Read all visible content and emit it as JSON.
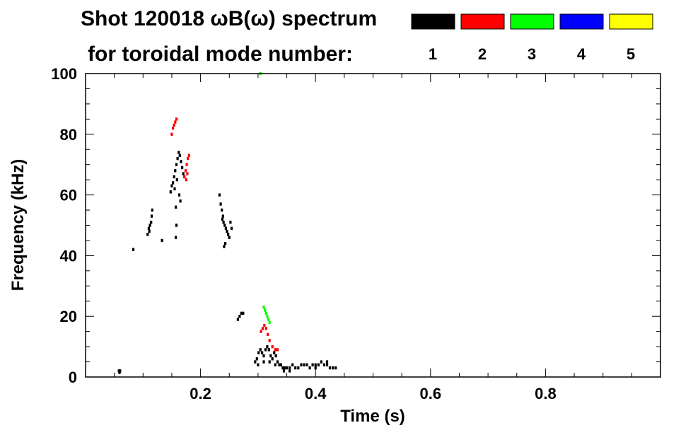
{
  "chart_data": {
    "type": "scatter",
    "title": "Shot 120018 ωB(ω) spectrum",
    "subtitle": "for toroidal mode number:",
    "xlabel": "Time (s)",
    "ylabel": "Frequency (kHz)",
    "xlim": [
      0.0,
      1.0
    ],
    "ylim": [
      0,
      100
    ],
    "x_ticks": [
      0.2,
      0.4,
      0.6,
      0.8
    ],
    "x_tick_labels": [
      "0.2",
      "0.4",
      "0.6",
      "0.8"
    ],
    "y_ticks": [
      0,
      20,
      40,
      60,
      80,
      100
    ],
    "y_tick_labels": [
      "0",
      "20",
      "40",
      "60",
      "80",
      "100"
    ],
    "grid": false,
    "legend_position": "top-right",
    "series": [
      {
        "name": "1",
        "color": "#000000",
        "points": [
          [
            0.058,
            2
          ],
          [
            0.06,
            2
          ],
          [
            0.059,
            1.5
          ],
          [
            0.083,
            42
          ],
          [
            0.108,
            47
          ],
          [
            0.11,
            49
          ],
          [
            0.112,
            50
          ],
          [
            0.114,
            51
          ],
          [
            0.115,
            53
          ],
          [
            0.116,
            55
          ],
          [
            0.111,
            48
          ],
          [
            0.133,
            45
          ],
          [
            0.148,
            61
          ],
          [
            0.15,
            63
          ],
          [
            0.152,
            64
          ],
          [
            0.154,
            66
          ],
          [
            0.156,
            68
          ],
          [
            0.158,
            70
          ],
          [
            0.16,
            72
          ],
          [
            0.162,
            74
          ],
          [
            0.164,
            73
          ],
          [
            0.166,
            71
          ],
          [
            0.168,
            69
          ],
          [
            0.17,
            67
          ],
          [
            0.155,
            62
          ],
          [
            0.159,
            65
          ],
          [
            0.163,
            60
          ],
          [
            0.157,
            56
          ],
          [
            0.158,
            50
          ],
          [
            0.157,
            46
          ],
          [
            0.165,
            58
          ],
          [
            0.172,
            66
          ],
          [
            0.233,
            60
          ],
          [
            0.235,
            57
          ],
          [
            0.237,
            55
          ],
          [
            0.239,
            53
          ],
          [
            0.24,
            51
          ],
          [
            0.242,
            50
          ],
          [
            0.244,
            49
          ],
          [
            0.246,
            48
          ],
          [
            0.248,
            47
          ],
          [
            0.25,
            46
          ],
          [
            0.243,
            44
          ],
          [
            0.241,
            43
          ],
          [
            0.238,
            52
          ],
          [
            0.252,
            51
          ],
          [
            0.254,
            49
          ],
          [
            0.265,
            19
          ],
          [
            0.268,
            20
          ],
          [
            0.271,
            21
          ],
          [
            0.274,
            21
          ],
          [
            0.295,
            5
          ],
          [
            0.298,
            6
          ],
          [
            0.301,
            8
          ],
          [
            0.304,
            9
          ],
          [
            0.307,
            8
          ],
          [
            0.31,
            7
          ],
          [
            0.313,
            9
          ],
          [
            0.316,
            10
          ],
          [
            0.319,
            9
          ],
          [
            0.322,
            7
          ],
          [
            0.325,
            6
          ],
          [
            0.328,
            8
          ],
          [
            0.331,
            7
          ],
          [
            0.334,
            5
          ],
          [
            0.337,
            4
          ],
          [
            0.34,
            4
          ],
          [
            0.343,
            3
          ],
          [
            0.346,
            3
          ],
          [
            0.35,
            3
          ],
          [
            0.355,
            3
          ],
          [
            0.36,
            4
          ],
          [
            0.365,
            3
          ],
          [
            0.37,
            3
          ],
          [
            0.375,
            4
          ],
          [
            0.38,
            4
          ],
          [
            0.385,
            4
          ],
          [
            0.39,
            3
          ],
          [
            0.395,
            4
          ],
          [
            0.4,
            4
          ],
          [
            0.405,
            4
          ],
          [
            0.41,
            5
          ],
          [
            0.415,
            4
          ],
          [
            0.42,
            4
          ],
          [
            0.425,
            3
          ],
          [
            0.43,
            3
          ],
          [
            0.435,
            3
          ],
          [
            0.3,
            4
          ],
          [
            0.31,
            5
          ],
          [
            0.32,
            5
          ],
          [
            0.33,
            4
          ],
          [
            0.345,
            2
          ],
          [
            0.355,
            2
          ],
          [
            0.4,
            3
          ],
          [
            0.42,
            5
          ]
        ]
      },
      {
        "name": "2",
        "color": "#ff0000",
        "points": [
          [
            0.15,
            80
          ],
          [
            0.152,
            82
          ],
          [
            0.154,
            83
          ],
          [
            0.156,
            84
          ],
          [
            0.158,
            85
          ],
          [
            0.172,
            66
          ],
          [
            0.174,
            68
          ],
          [
            0.176,
            70
          ],
          [
            0.178,
            72
          ],
          [
            0.18,
            73
          ],
          [
            0.175,
            65
          ],
          [
            0.177,
            67
          ],
          [
            0.305,
            15
          ],
          [
            0.308,
            16
          ],
          [
            0.311,
            17
          ],
          [
            0.314,
            16
          ],
          [
            0.317,
            14
          ],
          [
            0.32,
            12
          ],
          [
            0.325,
            10
          ],
          [
            0.33,
            9
          ],
          [
            0.334,
            9
          ]
        ]
      },
      {
        "name": "3",
        "color": "#00ff00",
        "points": [
          [
            0.31,
            23
          ],
          [
            0.312,
            22
          ],
          [
            0.314,
            21
          ],
          [
            0.316,
            20
          ],
          [
            0.318,
            19
          ],
          [
            0.32,
            18
          ],
          [
            0.304,
            100
          ]
        ]
      },
      {
        "name": "4",
        "color": "#0000ff",
        "points": []
      },
      {
        "name": "5",
        "color": "#ffff00",
        "points": []
      }
    ]
  }
}
